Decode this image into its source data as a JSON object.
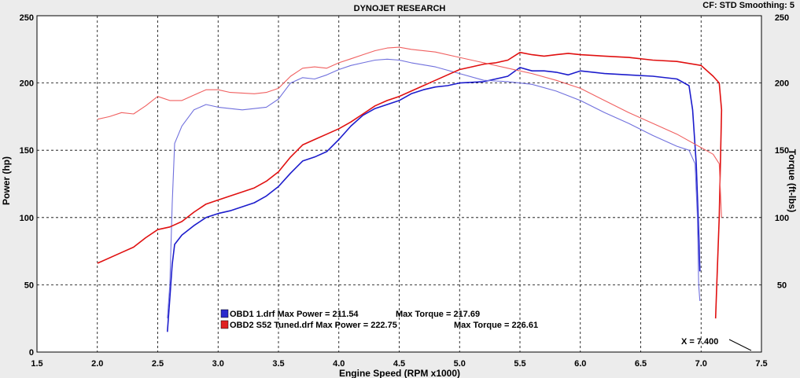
{
  "header": {
    "title": "DYNOJET RESEARCH",
    "settings": "CF: STD  Smoothing: 5"
  },
  "chart_data": {
    "type": "line",
    "title": "DYNOJET RESEARCH",
    "xlabel": "Engine Speed (RPM x1000)",
    "ylabel": "Power (hp)",
    "y2label": "Torque (ft-lbs)",
    "xlim": [
      1.5,
      7.5
    ],
    "ylim": [
      0,
      250
    ],
    "y2lim": [
      0,
      250
    ],
    "x_ticks": [
      "1.5",
      "2.0",
      "2.5",
      "3.0",
      "3.5",
      "4.0",
      "4.5",
      "5.0",
      "5.5",
      "6.0",
      "6.5",
      "7.0",
      "7.5"
    ],
    "y_ticks": [
      "0",
      "50",
      "100",
      "150",
      "200",
      "250"
    ],
    "y2_ticks": [
      "50",
      "100",
      "150",
      "200",
      "250"
    ],
    "grid": true,
    "legend_position": "bottom-left",
    "cursor_readout": "X = 7.400",
    "legend": [
      {
        "label": "OBD1 1.drf Max Power = 211.54",
        "torque_label": "Max Torque = 217.69",
        "color": "#2a2acc"
      },
      {
        "label": "OBD2 S52 Tuned.drf Max Power = 222.75",
        "torque_label": "Max Torque = 226.61",
        "color": "#e02020"
      }
    ],
    "series": [
      {
        "name": "OBD1 1.drf",
        "quantity": "power",
        "color": "#1c1ccc",
        "points": [
          [
            2.58,
            15
          ],
          [
            2.6,
            40
          ],
          [
            2.62,
            65
          ],
          [
            2.64,
            80
          ],
          [
            2.7,
            87
          ],
          [
            2.8,
            94
          ],
          [
            2.9,
            100
          ],
          [
            3.0,
            103
          ],
          [
            3.1,
            105
          ],
          [
            3.2,
            108
          ],
          [
            3.3,
            111
          ],
          [
            3.4,
            116
          ],
          [
            3.5,
            123
          ],
          [
            3.6,
            133
          ],
          [
            3.7,
            142
          ],
          [
            3.8,
            145
          ],
          [
            3.9,
            149
          ],
          [
            4.0,
            158
          ],
          [
            4.1,
            168
          ],
          [
            4.2,
            176
          ],
          [
            4.3,
            181
          ],
          [
            4.4,
            184
          ],
          [
            4.5,
            187
          ],
          [
            4.6,
            192
          ],
          [
            4.7,
            195
          ],
          [
            4.8,
            197
          ],
          [
            4.9,
            198
          ],
          [
            5.0,
            200
          ],
          [
            5.2,
            201
          ],
          [
            5.4,
            205
          ],
          [
            5.5,
            211.5
          ],
          [
            5.6,
            209
          ],
          [
            5.7,
            209
          ],
          [
            5.8,
            208
          ],
          [
            5.9,
            206
          ],
          [
            6.0,
            209
          ],
          [
            6.2,
            207
          ],
          [
            6.4,
            206
          ],
          [
            6.6,
            205
          ],
          [
            6.8,
            203
          ],
          [
            6.9,
            198
          ],
          [
            6.93,
            180
          ],
          [
            6.96,
            140
          ],
          [
            6.98,
            90
          ],
          [
            6.99,
            60
          ]
        ]
      },
      {
        "name": "OBD1 1.drf",
        "quantity": "torque",
        "color": "#7070dd",
        "points": [
          [
            2.58,
            25
          ],
          [
            2.6,
            50
          ],
          [
            2.62,
            110
          ],
          [
            2.64,
            155
          ],
          [
            2.7,
            168
          ],
          [
            2.8,
            180
          ],
          [
            2.9,
            184
          ],
          [
            3.0,
            182
          ],
          [
            3.2,
            180
          ],
          [
            3.4,
            182
          ],
          [
            3.5,
            188
          ],
          [
            3.6,
            200
          ],
          [
            3.7,
            204
          ],
          [
            3.8,
            203
          ],
          [
            3.9,
            206
          ],
          [
            4.0,
            210
          ],
          [
            4.1,
            213
          ],
          [
            4.2,
            215
          ],
          [
            4.3,
            217
          ],
          [
            4.4,
            217.7
          ],
          [
            4.5,
            217
          ],
          [
            4.6,
            215
          ],
          [
            4.8,
            212
          ],
          [
            5.0,
            207
          ],
          [
            5.2,
            202
          ],
          [
            5.4,
            201
          ],
          [
            5.6,
            199
          ],
          [
            5.8,
            194
          ],
          [
            6.0,
            187
          ],
          [
            6.2,
            178
          ],
          [
            6.4,
            170
          ],
          [
            6.6,
            161
          ],
          [
            6.8,
            153
          ],
          [
            6.9,
            150
          ],
          [
            6.95,
            140
          ],
          [
            6.97,
            100
          ],
          [
            6.98,
            50
          ],
          [
            6.99,
            38
          ]
        ]
      },
      {
        "name": "OBD2 S52 Tuned.drf",
        "quantity": "power",
        "color": "#e01010",
        "points": [
          [
            2.0,
            66
          ],
          [
            2.2,
            74
          ],
          [
            2.3,
            78
          ],
          [
            2.4,
            85
          ],
          [
            2.5,
            91
          ],
          [
            2.6,
            93
          ],
          [
            2.7,
            97
          ],
          [
            2.8,
            104
          ],
          [
            2.9,
            110
          ],
          [
            3.0,
            113
          ],
          [
            3.1,
            116
          ],
          [
            3.2,
            119
          ],
          [
            3.3,
            122
          ],
          [
            3.4,
            127
          ],
          [
            3.5,
            134
          ],
          [
            3.6,
            145
          ],
          [
            3.7,
            154
          ],
          [
            3.8,
            158
          ],
          [
            3.9,
            162
          ],
          [
            4.0,
            166
          ],
          [
            4.1,
            171
          ],
          [
            4.2,
            177
          ],
          [
            4.3,
            183
          ],
          [
            4.4,
            187
          ],
          [
            4.5,
            190
          ],
          [
            4.6,
            194
          ],
          [
            4.7,
            198
          ],
          [
            4.8,
            202
          ],
          [
            4.9,
            206
          ],
          [
            5.0,
            210
          ],
          [
            5.1,
            212
          ],
          [
            5.2,
            214
          ],
          [
            5.3,
            215
          ],
          [
            5.4,
            217
          ],
          [
            5.5,
            222.75
          ],
          [
            5.6,
            221
          ],
          [
            5.7,
            220
          ],
          [
            5.8,
            221
          ],
          [
            5.9,
            222
          ],
          [
            6.0,
            221
          ],
          [
            6.2,
            220
          ],
          [
            6.4,
            219
          ],
          [
            6.6,
            217
          ],
          [
            6.8,
            216
          ],
          [
            7.0,
            213
          ],
          [
            7.1,
            205
          ],
          [
            7.15,
            200
          ],
          [
            7.17,
            180
          ],
          [
            7.15,
            100
          ],
          [
            7.13,
            50
          ],
          [
            7.12,
            25
          ]
        ]
      },
      {
        "name": "OBD2 S52 Tuned.drf",
        "quantity": "torque",
        "color": "#f06060",
        "points": [
          [
            2.0,
            173
          ],
          [
            2.1,
            175
          ],
          [
            2.2,
            178
          ],
          [
            2.3,
            177
          ],
          [
            2.4,
            183
          ],
          [
            2.5,
            190
          ],
          [
            2.6,
            187
          ],
          [
            2.7,
            187
          ],
          [
            2.8,
            191
          ],
          [
            2.9,
            195
          ],
          [
            3.0,
            195
          ],
          [
            3.1,
            193
          ],
          [
            3.3,
            192
          ],
          [
            3.4,
            193
          ],
          [
            3.5,
            196
          ],
          [
            3.6,
            205
          ],
          [
            3.7,
            211
          ],
          [
            3.8,
            212
          ],
          [
            3.9,
            211
          ],
          [
            4.0,
            215
          ],
          [
            4.1,
            218
          ],
          [
            4.2,
            221
          ],
          [
            4.3,
            224
          ],
          [
            4.4,
            226
          ],
          [
            4.5,
            226.6
          ],
          [
            4.6,
            225
          ],
          [
            4.8,
            223
          ],
          [
            5.0,
            219
          ],
          [
            5.2,
            215
          ],
          [
            5.4,
            211
          ],
          [
            5.6,
            207
          ],
          [
            5.8,
            202
          ],
          [
            6.0,
            196
          ],
          [
            6.2,
            187
          ],
          [
            6.4,
            178
          ],
          [
            6.6,
            170
          ],
          [
            6.8,
            162
          ],
          [
            7.0,
            152
          ],
          [
            7.1,
            147
          ],
          [
            7.15,
            140
          ],
          [
            7.17,
            100
          ]
        ]
      }
    ]
  }
}
